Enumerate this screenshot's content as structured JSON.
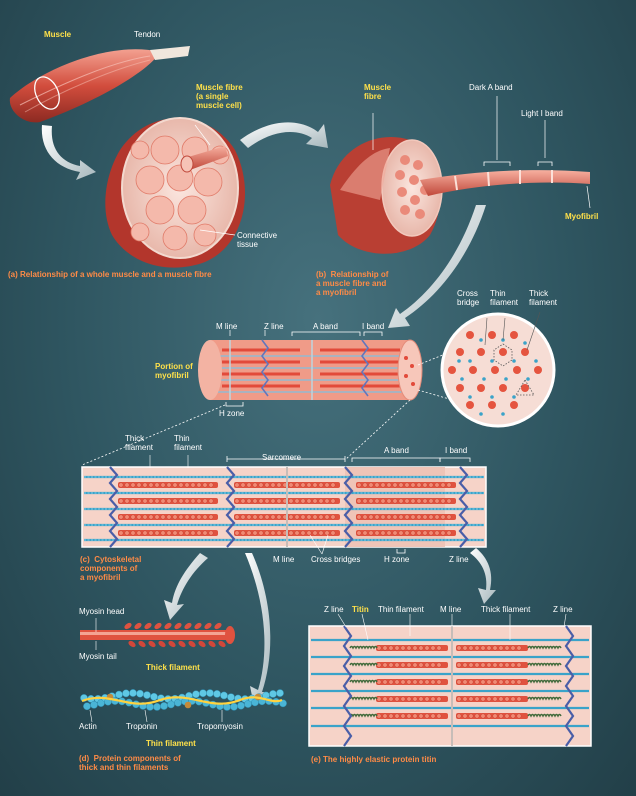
{
  "labels": {
    "muscle": "Muscle",
    "tendon": "Tendon",
    "muscle_fibre_single": "Muscle fibre\n(a single\nmuscle cell)",
    "connective_tissue": "Connective\ntissue",
    "muscle_fibre": "Muscle\nfibre",
    "dark_a_band": "Dark A band",
    "light_i_band": "Light I band",
    "myofibril": "Myofibril",
    "cross_bridge": "Cross\nbridge",
    "thin_filament_2l": "Thin\nfilament",
    "thick_filament_2l": "Thick\nfilament",
    "m_line": "M line",
    "z_line": "Z line",
    "a_band": "A band",
    "i_band": "I band",
    "portion_of_myofibril": "Portion of\nmyofibril",
    "h_zone": "H zone",
    "sarcomere": "Sarcomere",
    "cross_bridges": "Cross bridges",
    "myosin_head": "Myosin head",
    "myosin_tail": "Myosin tail",
    "thick_filament": "Thick filament",
    "thin_filament": "Thin filament",
    "actin": "Actin",
    "troponin": "Troponin",
    "tropomyosin": "Tropomyosin",
    "titin": "Titin"
  },
  "captions": {
    "a": "(a)  Relationship of a whole muscle and a muscle fibre",
    "b": "(b)  Relationship of\na muscle fibre and\na myofibril",
    "c": "(c)  Cytoskeletal\ncomponents of\na myofibril",
    "d": "(d)  Protein components of\nthick and thin filaments",
    "e": "(e)  The highly elastic protein titin"
  },
  "colors": {
    "background": "#2f5661",
    "muscle_red": "#d9574a",
    "label_yellow": "#ffe14a",
    "caption_orange": "#ff8b46",
    "panel_pink": "#f6d3c8",
    "thick_red": "#e0523f",
    "thin_blue": "#3aa3c9",
    "z_purple": "#4a5ea8"
  }
}
